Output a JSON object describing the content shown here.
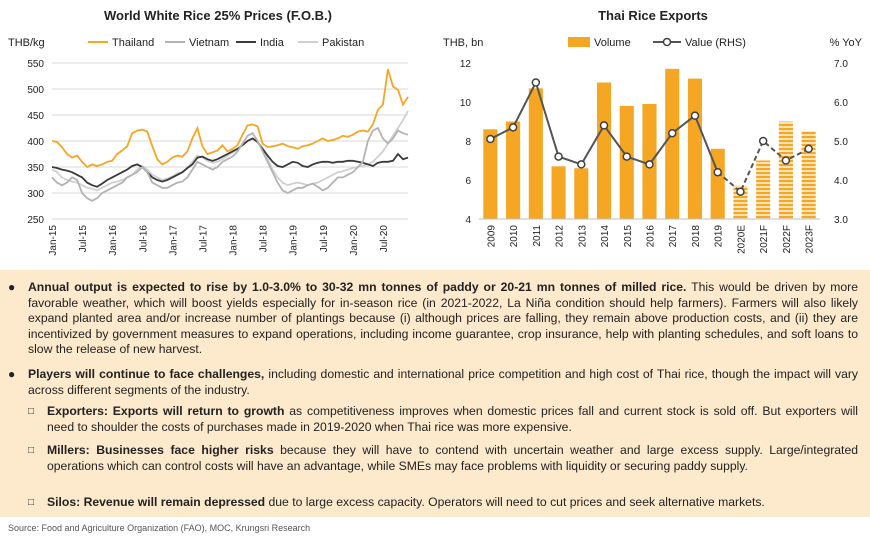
{
  "chart_data": [
    {
      "type": "line",
      "title": "World White Rice 25% Prices (F.O.B.)",
      "ylabel": "THB/kg",
      "ylim": [
        250,
        550
      ],
      "yticks": [
        250,
        300,
        350,
        400,
        450,
        500,
        550
      ],
      "xtick_labels": [
        "Jan-15",
        "Jul-15",
        "Jan-16",
        "Jul-16",
        "Jan-17",
        "Jul-17",
        "Jan-18",
        "Jul-18",
        "Jan-19",
        "Jul-19",
        "Jan-20",
        "Jul-20"
      ],
      "grid": true,
      "legend": "top",
      "series": [
        {
          "name": "Thailand",
          "color": "#f5a623",
          "values": [
            400,
            398,
            388,
            375,
            368,
            372,
            360,
            350,
            355,
            352,
            355,
            360,
            362,
            375,
            382,
            390,
            415,
            420,
            422,
            418,
            390,
            365,
            355,
            360,
            368,
            372,
            370,
            380,
            405,
            425,
            390,
            375,
            378,
            382,
            392,
            380,
            385,
            392,
            412,
            430,
            432,
            428,
            395,
            388,
            390,
            392,
            395,
            390,
            388,
            385,
            390,
            392,
            395,
            400,
            405,
            400,
            402,
            405,
            410,
            408,
            412,
            418,
            420,
            418,
            432,
            460,
            470,
            538,
            505,
            498,
            470,
            485
          ]
        },
        {
          "name": "Vietnam",
          "color": "#b3b3b3",
          "values": [
            330,
            320,
            315,
            320,
            330,
            325,
            300,
            290,
            285,
            290,
            300,
            305,
            310,
            315,
            320,
            330,
            335,
            340,
            350,
            340,
            320,
            315,
            310,
            310,
            315,
            320,
            322,
            330,
            345,
            360,
            355,
            350,
            345,
            350,
            360,
            365,
            370,
            380,
            395,
            410,
            415,
            400,
            380,
            360,
            340,
            320,
            305,
            300,
            305,
            310,
            310,
            315,
            318,
            312,
            305,
            310,
            320,
            330,
            330,
            335,
            340,
            350,
            360,
            400,
            420,
            425,
            405,
            395,
            405,
            420,
            415,
            412
          ]
        },
        {
          "name": "India",
          "color": "#3a3a3a",
          "values": [
            350,
            348,
            345,
            343,
            340,
            335,
            330,
            320,
            315,
            312,
            318,
            325,
            330,
            335,
            340,
            345,
            352,
            355,
            350,
            340,
            330,
            325,
            322,
            325,
            330,
            335,
            340,
            348,
            355,
            368,
            370,
            365,
            362,
            365,
            370,
            375,
            380,
            385,
            392,
            400,
            405,
            398,
            385,
            372,
            360,
            352,
            350,
            355,
            360,
            358,
            352,
            350,
            355,
            358,
            360,
            360,
            358,
            360,
            360,
            362,
            362,
            360,
            358,
            355,
            352,
            358,
            360,
            360,
            362,
            375,
            365,
            368
          ]
        },
        {
          "name": "Pakistan",
          "color": "#d0d0d0",
          "values": [
            345,
            340,
            330,
            325,
            322,
            320,
            315,
            310,
            308,
            305,
            310,
            315,
            320,
            322,
            325,
            330,
            335,
            345,
            352,
            345,
            335,
            330,
            325,
            328,
            332,
            338,
            340,
            348,
            360,
            372,
            368,
            362,
            358,
            360,
            365,
            372,
            378,
            385,
            392,
            400,
            405,
            398,
            385,
            365,
            345,
            330,
            320,
            315,
            318,
            320,
            318,
            315,
            318,
            320,
            325,
            330,
            335,
            340,
            342,
            345,
            348,
            350,
            352,
            355,
            360,
            370,
            380,
            395,
            410,
            425,
            440,
            458
          ]
        }
      ]
    },
    {
      "type": "bar",
      "title": "Thai Rice Exports",
      "ylabel": "THB, bn",
      "y2label": "% YoY",
      "ylim": [
        4,
        12
      ],
      "yticks": [
        4,
        6,
        8,
        10,
        12
      ],
      "y2lim": [
        3.0,
        7.0
      ],
      "y2ticks": [
        "3.0",
        "4.0",
        "5.0",
        "6.0",
        "7.0"
      ],
      "categories": [
        "2009",
        "2010",
        "2011",
        "2012",
        "2013",
        "2014",
        "2015",
        "2016",
        "2017",
        "2018",
        "2019",
        "2020E",
        "2021F",
        "2022F",
        "2023F"
      ],
      "forecast_from": "2020E",
      "legend": "top",
      "series": [
        {
          "name": "Volume",
          "type": "bar",
          "color": "#f5a623",
          "values": [
            8.6,
            9.0,
            10.7,
            6.7,
            6.6,
            11.0,
            9.8,
            9.9,
            11.7,
            11.2,
            7.6,
            5.7,
            7.0,
            9.0,
            8.5
          ]
        },
        {
          "name": "Value (RHS)",
          "type": "line",
          "axis": "right",
          "color": "#555555",
          "values": [
            5.05,
            5.35,
            6.5,
            4.6,
            4.4,
            5.4,
            4.6,
            4.4,
            5.2,
            5.65,
            4.2,
            3.7,
            5.0,
            4.5,
            4.8
          ]
        }
      ]
    }
  ],
  "bullets": [
    {
      "bold": "Annual output is expected to rise by 1.0-3.0% to 30-32 mn tonnes of paddy or 20-21 mn tonnes of milled rice.",
      "text": " This would be driven by more favorable weather, which will boost yields especially for in-season rice (in 2021-2022, La Niña condition should help farmers). Farmers will also likely expand planted area and/or increase number of plantings because (i) although prices are falling, they remain above production costs, and (ii) they are incentivized by government measures to expand operations, including income guarantee, crop insurance, help with planting schedules, and soft loans to slow the release of new harvest."
    },
    {
      "bold": "Players will continue to face challenges,",
      "text": " including domestic and international price competition and high cost of Thai rice, though the impact will vary across different segments of the industry.",
      "sub": [
        {
          "bold": "Exporters: Exports will return to growth",
          "text": " as competitiveness improves when domestic prices fall and current stock is sold off. But exporters will need to shoulder the costs of purchases made in 2019-2020 when Thai rice was more expensive."
        },
        {
          "bold": "Millers: Businesses face higher risks",
          "text": " because they will have to contend with uncertain weather and large excess supply. Large/integrated operations which can control costs will have an advantage, while SMEs may face problems with liquidity or securing paddy supply."
        },
        {
          "bold": "Silos: Revenue will remain depressed",
          "text": " due to large excess capacity. Operators will need to cut prices and seek alternative markets."
        }
      ]
    }
  ],
  "source": "Source: Food and Agriculture Organization (FAO), MOC, Krungsri Research",
  "colors": {
    "panel_bg": "#fde9cc",
    "accent": "#f5a623"
  }
}
